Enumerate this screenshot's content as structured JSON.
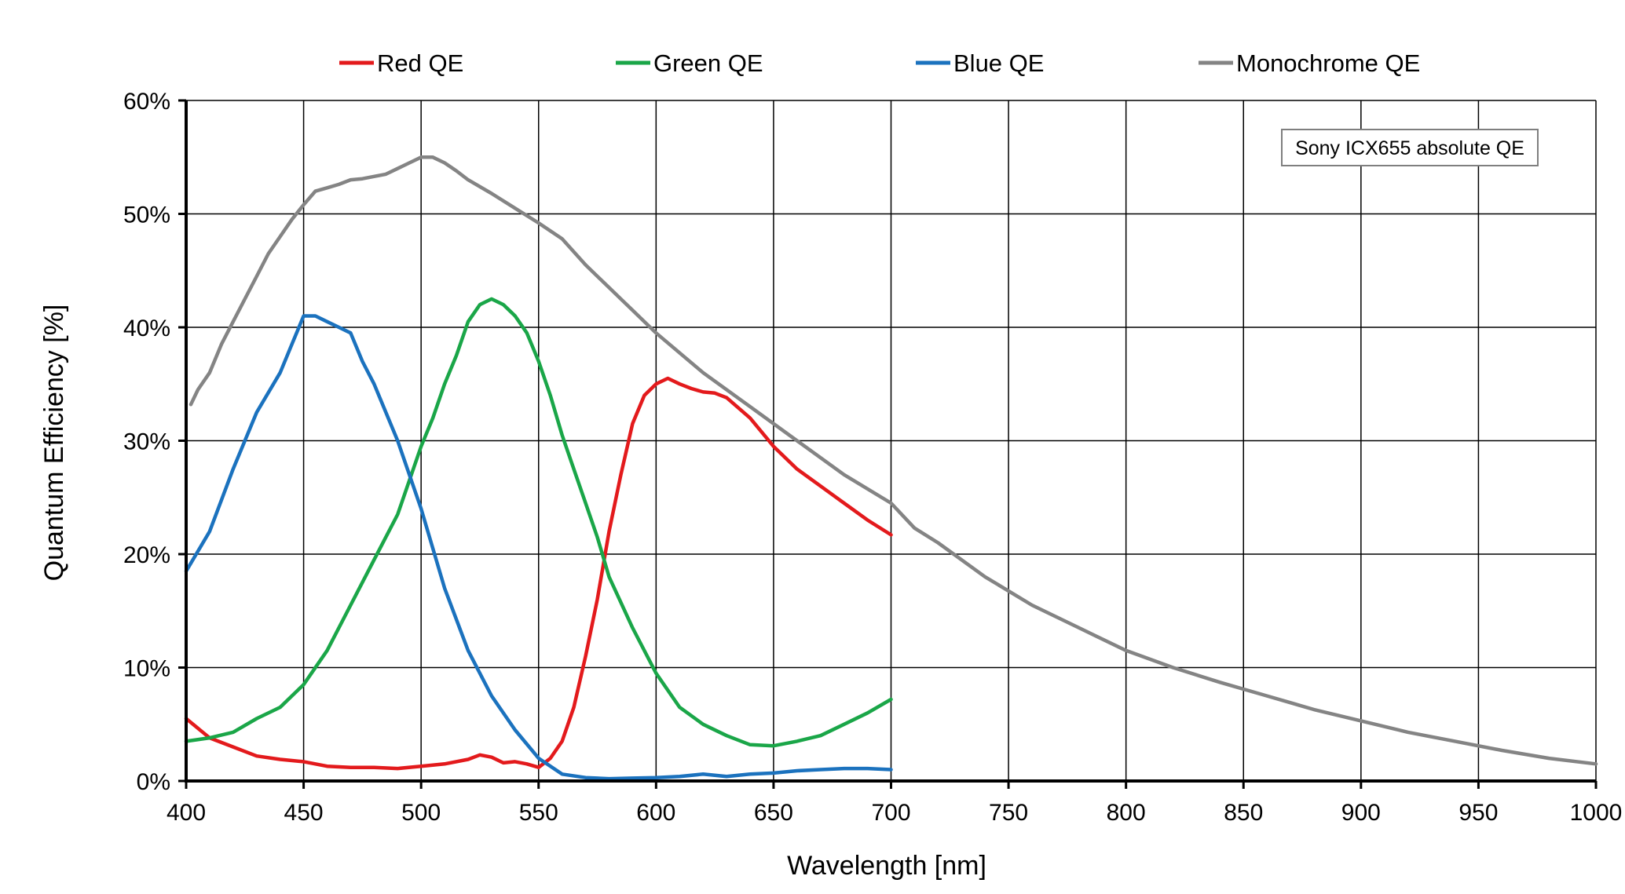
{
  "chart_data": {
    "type": "line",
    "xlabel": "Wavelength [nm]",
    "ylabel": "Quantum Efficiency [%]",
    "xlim": [
      400,
      1000
    ],
    "ylim": [
      0,
      60
    ],
    "x_ticks": [
      400,
      450,
      500,
      550,
      600,
      650,
      700,
      750,
      800,
      850,
      900,
      950,
      1000
    ],
    "y_ticks": [
      0,
      10,
      20,
      30,
      40,
      50,
      60
    ],
    "y_tick_suffix": "%",
    "grid": true,
    "legend_position": "top",
    "annotation": "Sony ICX655 absolute QE",
    "series": [
      {
        "name": "Red QE",
        "color": "#e31a1c",
        "x": [
          400,
          410,
          420,
          430,
          440,
          450,
          460,
          470,
          480,
          490,
          500,
          510,
          520,
          525,
          530,
          535,
          540,
          545,
          550,
          555,
          560,
          565,
          570,
          575,
          580,
          585,
          590,
          595,
          600,
          605,
          610,
          615,
          620,
          625,
          630,
          640,
          650,
          660,
          670,
          680,
          690,
          700
        ],
        "y": [
          5.5,
          3.8,
          3.0,
          2.2,
          1.9,
          1.7,
          1.3,
          1.2,
          1.2,
          1.1,
          1.3,
          1.5,
          1.9,
          2.3,
          2.1,
          1.6,
          1.7,
          1.5,
          1.2,
          2.0,
          3.5,
          6.5,
          11.0,
          16.0,
          22.0,
          27.0,
          31.5,
          34.0,
          35.0,
          35.5,
          35.0,
          34.6,
          34.3,
          34.2,
          33.8,
          32.0,
          29.5,
          27.5,
          26.0,
          24.5,
          23.0,
          21.7
        ]
      },
      {
        "name": "Green QE",
        "color": "#1aa648",
        "x": [
          400,
          410,
          420,
          430,
          440,
          450,
          460,
          470,
          480,
          490,
          500,
          505,
          510,
          515,
          520,
          525,
          530,
          535,
          540,
          545,
          550,
          555,
          560,
          565,
          570,
          575,
          580,
          590,
          600,
          610,
          620,
          630,
          640,
          650,
          660,
          670,
          680,
          690,
          700
        ],
        "y": [
          3.5,
          3.8,
          4.3,
          5.5,
          6.5,
          8.5,
          11.5,
          15.5,
          19.5,
          23.5,
          29.5,
          32.0,
          35.0,
          37.5,
          40.5,
          42.0,
          42.5,
          42.0,
          41.0,
          39.5,
          37.0,
          34.0,
          30.5,
          27.5,
          24.5,
          21.5,
          18.0,
          13.5,
          9.5,
          6.5,
          5.0,
          4.0,
          3.2,
          3.1,
          3.5,
          4.0,
          5.0,
          6.0,
          7.2
        ]
      },
      {
        "name": "Blue QE",
        "color": "#1b72be",
        "x": [
          400,
          410,
          420,
          430,
          440,
          445,
          450,
          455,
          460,
          465,
          470,
          475,
          480,
          490,
          500,
          510,
          520,
          530,
          540,
          550,
          560,
          570,
          580,
          590,
          600,
          610,
          620,
          630,
          640,
          650,
          660,
          670,
          680,
          690,
          700
        ],
        "y": [
          18.5,
          22.0,
          27.5,
          32.5,
          36.0,
          38.5,
          41.0,
          41.0,
          40.5,
          40.0,
          39.5,
          37.0,
          35.0,
          30.0,
          24.0,
          17.0,
          11.5,
          7.5,
          4.5,
          2.0,
          0.6,
          0.3,
          0.2,
          0.25,
          0.3,
          0.4,
          0.6,
          0.4,
          0.6,
          0.7,
          0.9,
          1.0,
          1.1,
          1.1,
          1.0
        ]
      },
      {
        "name": "Monochrome QE",
        "color": "#848484",
        "x": [
          402,
          405,
          410,
          415,
          420,
          425,
          430,
          435,
          440,
          445,
          450,
          455,
          460,
          465,
          470,
          475,
          480,
          485,
          490,
          495,
          500,
          505,
          510,
          515,
          520,
          530,
          540,
          550,
          560,
          570,
          580,
          590,
          600,
          620,
          640,
          660,
          680,
          700,
          710,
          720,
          740,
          760,
          780,
          800,
          820,
          840,
          860,
          880,
          900,
          920,
          940,
          960,
          980,
          1000
        ],
        "y": [
          33.2,
          34.5,
          36.0,
          38.5,
          40.5,
          42.5,
          44.5,
          46.5,
          48.0,
          49.5,
          50.8,
          52.0,
          52.3,
          52.6,
          53.0,
          53.1,
          53.3,
          53.5,
          54.0,
          54.5,
          55.0,
          55.0,
          54.5,
          53.8,
          53.0,
          51.8,
          50.5,
          49.2,
          47.8,
          45.5,
          43.5,
          41.5,
          39.5,
          36.0,
          33.0,
          30.0,
          27.0,
          24.5,
          22.3,
          21.0,
          18.0,
          15.5,
          13.5,
          11.5,
          10.0,
          8.7,
          7.5,
          6.3,
          5.3,
          4.3,
          3.5,
          2.7,
          2.0,
          1.5
        ]
      }
    ]
  }
}
